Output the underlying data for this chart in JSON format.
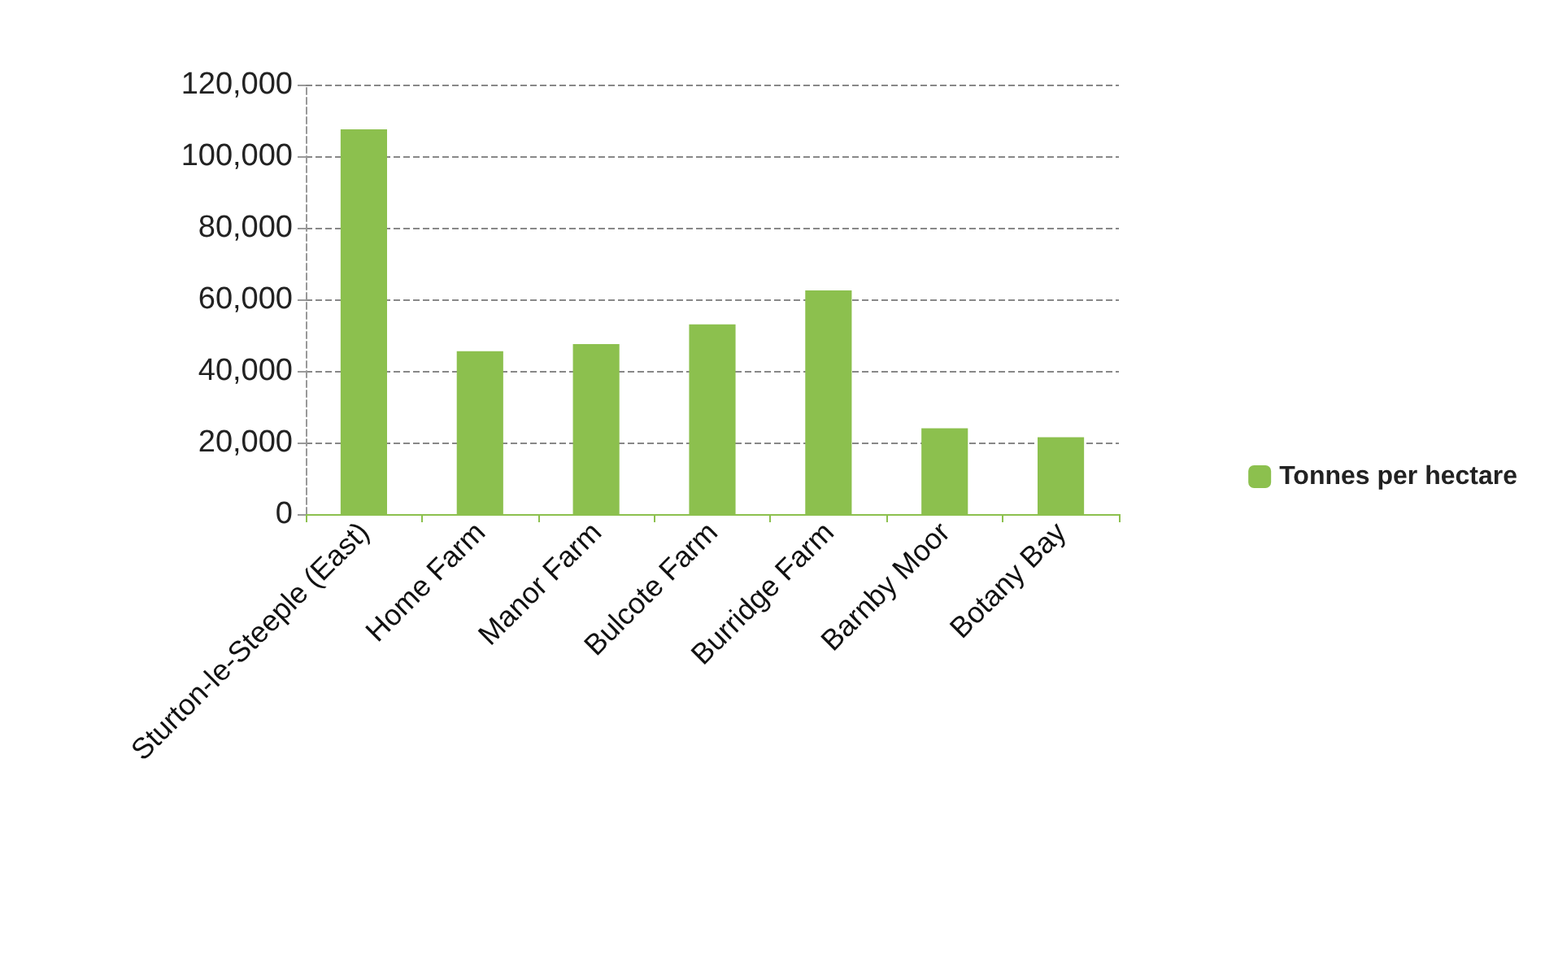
{
  "chart_data": {
    "type": "bar",
    "categories": [
      "Sturton-le-Steeple (East)",
      "Home Farm",
      "Manor Farm",
      "Bulcote Farm",
      "Burridge Farm",
      "Barnby Moor",
      "Botany Bay"
    ],
    "series": [
      {
        "name": "Tonnes per hectare",
        "color": "#8cc04e",
        "values": [
          107500,
          45500,
          47500,
          53000,
          62500,
          24000,
          21500
        ]
      }
    ],
    "ylim": [
      0,
      120000
    ],
    "yticks": [
      {
        "value": 0,
        "label": "0"
      },
      {
        "value": 20000,
        "label": "20,000"
      },
      {
        "value": 40000,
        "label": "40,000"
      },
      {
        "value": 60000,
        "label": "60,000"
      },
      {
        "value": 80000,
        "label": "80,000"
      },
      {
        "value": 100000,
        "label": "100,000"
      },
      {
        "value": 120000,
        "label": "120,000"
      }
    ],
    "grid": "y",
    "legend": "right"
  }
}
